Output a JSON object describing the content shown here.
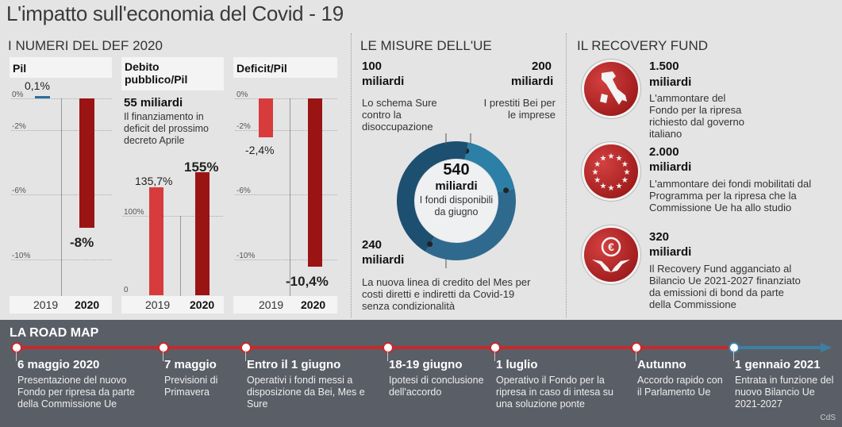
{
  "title": "L'impatto sull'economia del Covid - 19",
  "sections": {
    "def": "I NUMERI DEL DEF 2020",
    "ue": "LE MISURE DELL'UE",
    "recovery": "IL RECOVERY FUND"
  },
  "chart_data": [
    {
      "type": "bar",
      "title": "Pil",
      "categories": [
        "2019",
        "2020"
      ],
      "values": [
        0.1,
        -8
      ],
      "value_labels": [
        "0,1%",
        "-8%"
      ],
      "ticks": [
        "0%",
        "-2%",
        "-6%",
        "-10%"
      ],
      "ylim": [
        -10,
        0
      ]
    },
    {
      "type": "bar",
      "title": "Debito pubblico/Pil",
      "categories": [
        "2019",
        "2020"
      ],
      "values": [
        135.7,
        155
      ],
      "value_labels": [
        "135,7%",
        "155%"
      ],
      "ticks": [
        "100%",
        "0"
      ],
      "ylim": [
        0,
        155
      ],
      "note_value": "55 miliardi",
      "note_text": "Il finanziamento in deficit del prossimo decreto Aprile"
    },
    {
      "type": "bar",
      "title": "Deficit/Pil",
      "categories": [
        "2019",
        "2020"
      ],
      "values": [
        -2.4,
        -10.4
      ],
      "value_labels": [
        "-2,4%",
        "-10,4%"
      ],
      "ticks": [
        "0%",
        "-2%",
        "-6%",
        "-10%"
      ],
      "ylim": [
        -10.4,
        0
      ]
    },
    {
      "type": "pie",
      "title": "LE MISURE DELL'UE",
      "center_value": "540",
      "center_unit": "miliardi",
      "center_text": "I fondi disponibili da giugno",
      "slices": [
        {
          "value": 100,
          "label": "100",
          "unit": "miliardi",
          "text": "Lo schema Sure contro la disoccupazione",
          "color": "#2c7fa6"
        },
        {
          "value": 200,
          "label": "200",
          "unit": "miliardi",
          "text": "I prestiti Bei per le imprese",
          "color": "#2f6a8e"
        },
        {
          "value": 240,
          "label": "240",
          "unit": "miliardi",
          "text": "La nuova linea di credito del Mes per costi diretti e indiretti da Covid-19 senza condizionalità",
          "color": "#1d4f70"
        }
      ]
    }
  ],
  "recovery": [
    {
      "icon": "italy-map-icon",
      "value": "1.500",
      "unit": "miliardi",
      "text": "L'ammontare del Fondo per la ripresa richiesto dal governo italiano"
    },
    {
      "icon": "eu-stars-icon",
      "value": "2.000",
      "unit": "miliardi",
      "text": "L'ammontare dei fondi mobilitati dal Programma per la ripresa che la Commissione Ue ha allo studio"
    },
    {
      "icon": "euro-hands-icon",
      "value": "320",
      "unit": "miliardi",
      "text": "Il Recovery Fund agganciato al Bilancio Ue 2021-2027 finanziato da emissioni di bond da parte della Commissione"
    }
  ],
  "roadmap": {
    "title": "LA ROAD MAP",
    "items": [
      {
        "date": "6 maggio 2020",
        "text": "Presentazione del nuovo Fondo per ripresa da parte della Commissione Ue"
      },
      {
        "date": "7 maggio",
        "text": "Previsioni di Primavera"
      },
      {
        "date": "Entro il 1 giugno",
        "text": "Operativi i fondi messi a disposizione da Bei, Mes e Sure"
      },
      {
        "date": "18-19 giugno",
        "text": "Ipotesi di conclusione dell'accordo"
      },
      {
        "date": "1 luglio",
        "text": "Operativo il Fondo per la ripresa in caso di intesa su una soluzione ponte"
      },
      {
        "date": "Autunno",
        "text": "Accordo rapido con il Parlamento Ue"
      },
      {
        "date": "1 gennaio 2021",
        "text": "Entrata in funzione del nuovo Bilancio Ue 2021-2027"
      }
    ],
    "credit": "CdS"
  },
  "colors": {
    "dark_red": "#9b1414",
    "light_red": "#d83b3b",
    "blue": "#2c7fa6",
    "dark_blue": "#1d4f70"
  }
}
